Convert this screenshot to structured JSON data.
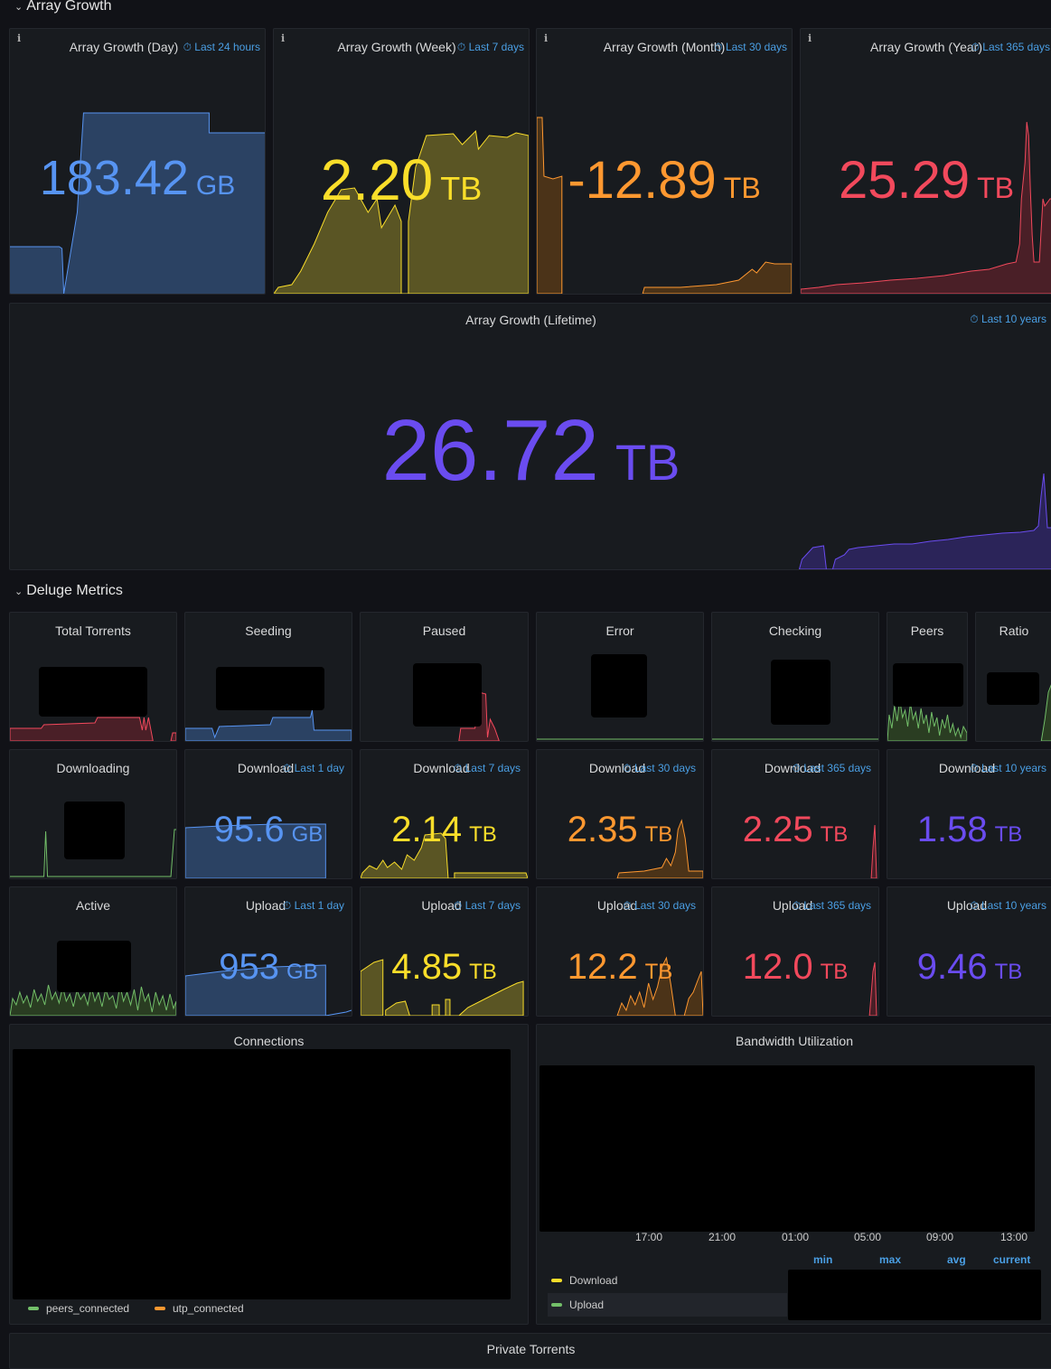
{
  "sections": {
    "array_growth": "Array Growth",
    "deluge_metrics": "Deluge Metrics",
    "private_torrents": "Private Torrents"
  },
  "colors": {
    "blue": "#5794f2",
    "yellow": "#fade2a",
    "orange": "#ff9830",
    "red": "#f2495c",
    "purple": "#6a4cf0",
    "green": "#73bf69",
    "time": "#4a9fe4"
  },
  "array_growth": {
    "day": {
      "title": "Array Growth (Day)",
      "time": "Last 24 hours",
      "value": "183.42",
      "unit": "GB"
    },
    "week": {
      "title": "Array Growth (Week)",
      "time": "Last 7 days",
      "value": "2.20",
      "unit": "TB"
    },
    "month": {
      "title": "Array Growth (Month)",
      "time": "Last 30 days",
      "value": "-12.89",
      "unit": "TB"
    },
    "year": {
      "title": "Array Growth (Year)",
      "time": "Last 365 days",
      "value": "25.29",
      "unit": "TB"
    },
    "lifetime": {
      "title": "Array Growth (Lifetime)",
      "time": "Last 10 years",
      "value": "26.72",
      "unit": "TB"
    }
  },
  "deluge": {
    "total_torrents": {
      "title": "Total Torrents"
    },
    "seeding": {
      "title": "Seeding"
    },
    "paused": {
      "title": "Paused"
    },
    "error": {
      "title": "Error"
    },
    "checking": {
      "title": "Checking"
    },
    "peers": {
      "title": "Peers"
    },
    "ratio": {
      "title": "Ratio"
    },
    "downloading": {
      "title": "Downloading"
    },
    "active": {
      "title": "Active"
    },
    "download": [
      {
        "title": "Download",
        "time": "Last 1 day",
        "value": "95.6",
        "unit": "GB"
      },
      {
        "title": "Download",
        "time": "Last 7 days",
        "value": "2.14",
        "unit": "TB"
      },
      {
        "title": "Download",
        "time": "Last 30 days",
        "value": "2.35",
        "unit": "TB"
      },
      {
        "title": "Download",
        "time": "Last 365 days",
        "value": "2.25",
        "unit": "TB"
      },
      {
        "title": "Download",
        "time": "Last 10 years",
        "value": "1.58",
        "unit": "TB"
      }
    ],
    "upload": [
      {
        "title": "Upload",
        "time": "Last 1 day",
        "value": "953",
        "unit": "GB"
      },
      {
        "title": "Upload",
        "time": "Last 7 days",
        "value": "4.85",
        "unit": "TB"
      },
      {
        "title": "Upload",
        "time": "Last 30 days",
        "value": "12.2",
        "unit": "TB"
      },
      {
        "title": "Upload",
        "time": "Last 365 days",
        "value": "12.0",
        "unit": "TB"
      },
      {
        "title": "Upload",
        "time": "Last 10 years",
        "value": "9.46",
        "unit": "TB"
      }
    ]
  },
  "connections": {
    "title": "Connections",
    "legend": [
      {
        "name": "peers_connected",
        "color": "#73bf69"
      },
      {
        "name": "utp_connected",
        "color": "#fade2a"
      }
    ]
  },
  "bandwidth": {
    "title": "Bandwidth Utilization",
    "x_ticks": [
      "17:00",
      "21:00",
      "01:00",
      "05:00",
      "09:00",
      "13:00"
    ],
    "columns": [
      "min",
      "max",
      "avg",
      "current"
    ],
    "legend": [
      {
        "name": "Download",
        "color": "#fade2a"
      },
      {
        "name": "Upload",
        "color": "#73bf69"
      }
    ]
  }
}
